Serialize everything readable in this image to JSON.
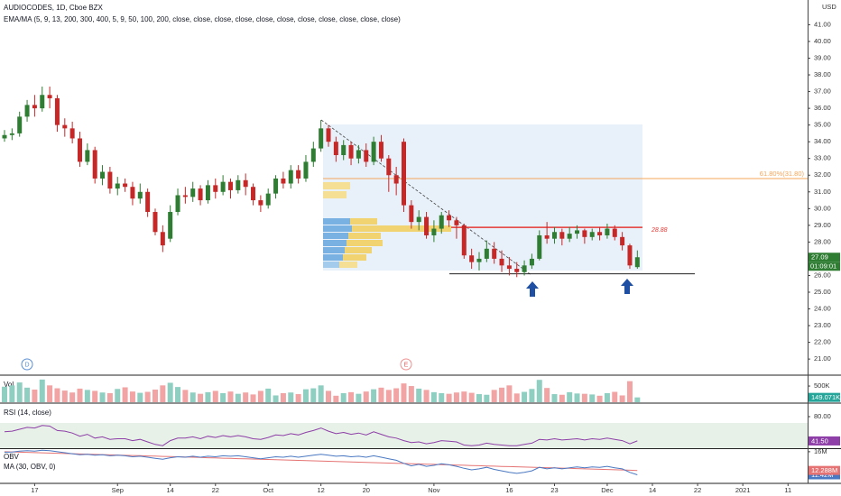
{
  "chart_data": [
    {
      "type": "candlestick",
      "title": "AUDIOCODES, 1D, Cboe BZX",
      "subtitle": "EMA/MA (5, 9, 13, 200, 300, 400, 5, 9, 50, 100, 200, close, close, close, close, close, close, close, close, close, close, close)",
      "currency": "USD",
      "countdown": "01:09:01",
      "colors": {
        "up": "#2e7d32",
        "down": "#c62828"
      },
      "open": [
        34.2,
        34.4,
        34.5,
        35.5,
        36.2,
        36.0,
        36.8,
        36.6,
        35.0,
        34.8,
        34.2,
        32.8,
        33.5,
        31.8,
        32.2,
        31.2,
        31.5,
        31.3,
        30.6,
        31.0,
        29.8,
        28.6,
        28.2,
        29.8,
        30.8,
        30.7,
        31.2,
        30.5,
        31.4,
        31.0,
        31.6,
        31.1,
        31.7,
        31.3,
        30.5,
        30.2,
        30.9,
        31.8,
        31.5,
        32.3,
        31.8,
        32.8,
        33.6,
        34.8,
        34.0,
        33.2,
        33.8,
        33.0,
        33.5,
        32.8,
        34.0,
        33.0,
        32.0,
        34.0,
        30.2,
        29.2,
        29.5,
        28.4,
        28.8,
        29.6,
        29.3,
        29.0,
        27.2,
        26.8,
        27.0,
        27.6,
        27.0,
        26.6,
        26.4,
        26.2,
        26.6,
        27.0,
        28.4,
        28.2,
        28.6,
        28.2,
        28.5,
        28.7,
        28.3,
        28.6,
        28.4,
        28.8,
        28.3,
        27.8,
        26.5
      ],
      "high": [
        34.7,
        34.8,
        35.8,
        36.5,
        36.8,
        37.3,
        37.3,
        36.8,
        35.4,
        35.2,
        34.6,
        33.9,
        33.7,
        32.6,
        32.5,
        31.9,
        31.8,
        31.6,
        31.5,
        31.2,
        30.0,
        29.0,
        30.2,
        31.2,
        31.3,
        31.6,
        31.4,
        31.7,
        31.8,
        32.0,
        31.8,
        32.0,
        32.1,
        31.5,
        30.8,
        31.2,
        32.0,
        32.2,
        32.6,
        32.6,
        33.2,
        34.0,
        35.3,
        35.0,
        34.3,
        34.1,
        34.0,
        33.8,
        33.9,
        34.3,
        34.4,
        33.2,
        32.5,
        34.2,
        30.5,
        29.9,
        29.8,
        29.3,
        29.8,
        29.9,
        29.5,
        29.1,
        27.6,
        27.4,
        28.1,
        28.0,
        27.5,
        27.1,
        26.8,
        26.9,
        27.3,
        28.7,
        29.2,
        28.9,
        28.8,
        28.9,
        29.0,
        28.8,
        28.8,
        28.9,
        29.1,
        29.0,
        28.6,
        27.9,
        27.5
      ],
      "low": [
        34.0,
        34.1,
        34.3,
        35.2,
        35.5,
        35.8,
        36.0,
        34.6,
        34.3,
        33.9,
        32.5,
        32.6,
        31.5,
        31.4,
        30.9,
        30.8,
        31.0,
        30.2,
        30.3,
        29.5,
        28.4,
        27.4,
        28.0,
        29.6,
        30.3,
        30.4,
        30.2,
        30.3,
        30.6,
        30.8,
        30.6,
        30.9,
        30.8,
        30.2,
        29.8,
        30.0,
        30.6,
        31.2,
        31.2,
        31.5,
        31.6,
        32.5,
        33.4,
        33.7,
        32.8,
        32.9,
        32.6,
        32.7,
        32.5,
        32.6,
        32.8,
        31.0,
        30.8,
        29.8,
        28.8,
        28.7,
        28.2,
        28.0,
        28.5,
        28.9,
        28.2,
        27.0,
        26.4,
        26.3,
        26.8,
        26.7,
        26.2,
        26.0,
        25.9,
        26.0,
        26.4,
        26.9,
        27.9,
        27.9,
        27.8,
        28.0,
        28.2,
        27.9,
        28.1,
        28.1,
        28.2,
        28.1,
        27.5,
        26.4,
        26.4
      ],
      "close": [
        34.4,
        34.5,
        35.5,
        36.2,
        36.0,
        36.8,
        36.6,
        35.0,
        34.8,
        34.2,
        32.8,
        33.5,
        31.8,
        32.2,
        31.2,
        31.5,
        31.3,
        30.6,
        31.0,
        29.8,
        28.6,
        27.8,
        29.8,
        30.8,
        30.7,
        31.2,
        30.5,
        31.4,
        31.0,
        31.6,
        31.1,
        31.7,
        31.3,
        30.5,
        30.2,
        30.9,
        31.8,
        31.5,
        32.3,
        31.8,
        32.8,
        33.6,
        34.8,
        34.0,
        33.2,
        33.8,
        33.0,
        33.5,
        32.8,
        34.0,
        33.0,
        32.0,
        31.5,
        30.2,
        29.2,
        29.5,
        28.4,
        28.8,
        29.6,
        29.3,
        29.0,
        27.2,
        26.8,
        27.0,
        27.6,
        27.0,
        26.6,
        26.4,
        26.2,
        26.6,
        27.0,
        28.4,
        28.2,
        28.6,
        28.2,
        28.5,
        28.7,
        28.3,
        28.6,
        28.4,
        28.8,
        28.3,
        27.8,
        26.6,
        27.09
      ],
      "ylim": [
        20.09,
        42.48
      ],
      "yticks": [
        {
          "value": 21,
          "label": "21.00"
        },
        {
          "value": 22,
          "label": "22.00"
        },
        {
          "value": 23,
          "label": "23.00"
        },
        {
          "value": 24,
          "label": "24.00"
        },
        {
          "value": 25,
          "label": "25.00"
        },
        {
          "value": 26,
          "label": "26.00"
        },
        {
          "value": 28,
          "label": "28.00"
        },
        {
          "value": 29,
          "label": "29.00"
        },
        {
          "value": 30,
          "label": "30.00"
        },
        {
          "value": 31,
          "label": "31.00"
        },
        {
          "value": 32,
          "label": "32.00"
        },
        {
          "value": 33,
          "label": "33.00"
        },
        {
          "value": 34,
          "label": "34.00"
        },
        {
          "value": 35,
          "label": "35.00"
        },
        {
          "value": 36,
          "label": "36.00"
        },
        {
          "value": 37,
          "label": "37.00"
        },
        {
          "value": 38,
          "label": "38.00"
        },
        {
          "value": 39,
          "label": "39.00"
        },
        {
          "value": 40,
          "label": "40.00"
        },
        {
          "value": 41,
          "label": "41.00"
        }
      ],
      "xlim": [
        -0.6,
        106.6
      ],
      "xticks": [
        {
          "value": 4,
          "label": "17"
        },
        {
          "value": 15,
          "label": "Sep"
        },
        {
          "value": 22,
          "label": "14"
        },
        {
          "value": 28,
          "label": "22"
        },
        {
          "value": 35,
          "label": "Oct"
        },
        {
          "value": 42,
          "label": "12"
        },
        {
          "value": 48,
          "label": "20"
        },
        {
          "value": 57,
          "label": "Nov"
        },
        {
          "value": 67,
          "label": "16"
        },
        {
          "value": 73,
          "label": "23"
        },
        {
          "value": 80,
          "label": "Dec"
        },
        {
          "value": 86,
          "label": "14"
        },
        {
          "value": 92,
          "label": "22"
        },
        {
          "value": 98,
          "label": "2021"
        },
        {
          "value": 104,
          "label": "11"
        }
      ],
      "fib": {
        "value": 31.8,
        "label": "61.80%(31.80)",
        "color": "#f5a55a"
      },
      "resistance": {
        "value": 28.88,
        "color": "#e53935"
      },
      "support": {
        "value": 26.1,
        "color": "#222222"
      },
      "events": [
        "D",
        "E"
      ]
    },
    {
      "type": "bar",
      "name": "Vol",
      "colors": {
        "up": "#8fcfc2",
        "down": "#f2a3a3"
      },
      "values": [
        480000,
        520000,
        610000,
        450000,
        390000,
        700000,
        520000,
        430000,
        360000,
        300000,
        420000,
        380000,
        350000,
        300000,
        280000,
        410000,
        460000,
        330000,
        290000,
        320000,
        390000,
        520000,
        600000,
        470000,
        380000,
        300000,
        260000,
        310000,
        350000,
        280000,
        330000,
        260000,
        300000,
        240000,
        350000,
        420000,
        210000,
        280000,
        300000,
        250000,
        400000,
        430000,
        520000,
        350000,
        200000,
        280000,
        310000,
        260000,
        330000,
        400000,
        450000,
        380000,
        430000,
        580000,
        500000,
        420000,
        380000,
        310000,
        280000,
        260000,
        300000,
        330000,
        290000,
        250000,
        230000,
        380000,
        450000,
        520000,
        270000,
        320000,
        410000,
        690000,
        440000,
        250000,
        230000,
        310000,
        270000,
        260000,
        240000,
        200000,
        280000,
        320000,
        210000,
        650000,
        149071
      ],
      "last_label": "149.071K",
      "ylim": [
        0,
        780000
      ],
      "yticks": [
        {
          "value": 500000,
          "label": "500K"
        }
      ]
    },
    {
      "type": "line",
      "title": "RSI (14, close)",
      "color": "#8e3fa8",
      "band": [
        30,
        70
      ],
      "values": [
        56,
        57,
        60,
        63,
        62,
        66,
        65,
        58,
        57,
        54,
        49,
        52,
        46,
        48,
        44,
        45,
        45,
        42,
        44,
        40,
        36,
        34,
        42,
        46,
        46,
        48,
        45,
        49,
        47,
        50,
        48,
        50,
        48,
        45,
        44,
        47,
        51,
        50,
        53,
        51,
        55,
        58,
        62,
        57,
        53,
        55,
        52,
        54,
        51,
        56,
        52,
        48,
        46,
        42,
        39,
        40,
        37,
        39,
        42,
        41,
        40,
        35,
        34,
        35,
        38,
        36,
        35,
        34,
        34,
        36,
        38,
        44,
        43,
        45,
        43,
        44,
        45,
        43,
        45,
        44,
        46,
        44,
        42,
        37,
        41.5
      ],
      "last_label": "41.50",
      "ylim": [
        30,
        100
      ],
      "yticks": [
        {
          "value": 80,
          "label": "80.00"
        }
      ]
    },
    {
      "type": "line",
      "ylim": [
        9900000,
        16340000
      ],
      "yticks": [
        {
          "value": 16000000,
          "label": "16M"
        }
      ],
      "series": [
        {
          "name": "OBV",
          "color": "#4a78c2",
          "last_label": "11.42M",
          "values": [
            15900000,
            15950000,
            16100000,
            16200000,
            16100000,
            16300000,
            16200000,
            16000000,
            15800000,
            15600000,
            15400000,
            15500000,
            15300000,
            15400000,
            15200000,
            15300000,
            15200000,
            15000000,
            15100000,
            14900000,
            14700000,
            14500000,
            14800000,
            15000000,
            14900000,
            15100000,
            14900000,
            15100000,
            15000000,
            15200000,
            15100000,
            15200000,
            15000000,
            14800000,
            14600000,
            14800000,
            15000000,
            14900000,
            15100000,
            14900000,
            15100000,
            15300000,
            15500000,
            15300000,
            15100000,
            15200000,
            15000000,
            15100000,
            14900000,
            15200000,
            14900000,
            14600000,
            14300000,
            13700000,
            13200000,
            13500000,
            13100000,
            13300000,
            13600000,
            13400000,
            13100000,
            12700000,
            12400000,
            12600000,
            12900000,
            12500000,
            12200000,
            11900000,
            11700000,
            11900000,
            12200000,
            12900000,
            12600000,
            12800000,
            12600000,
            12800000,
            13000000,
            12800000,
            13000000,
            12900000,
            13100000,
            12800000,
            12600000,
            11900000,
            11420000
          ]
        },
        {
          "name": "MA (30, OBV, 0)",
          "color": "#e57373",
          "last_label": "12.288M",
          "values": [
            16000000,
            15960000,
            15910000,
            15870000,
            15820000,
            15780000,
            15740000,
            15690000,
            15650000,
            15600000,
            15560000,
            15510000,
            15470000,
            15430000,
            15380000,
            15340000,
            15290000,
            15250000,
            15210000,
            15160000,
            15120000,
            15070000,
            15030000,
            14990000,
            14940000,
            14900000,
            14850000,
            14810000,
            14770000,
            14720000,
            14680000,
            14630000,
            14590000,
            14550000,
            14500000,
            14460000,
            14410000,
            14370000,
            14330000,
            14280000,
            14240000,
            14190000,
            14150000,
            14110000,
            14060000,
            14020000,
            13970000,
            13930000,
            13890000,
            13840000,
            13800000,
            13750000,
            13710000,
            13670000,
            13620000,
            13580000,
            13530000,
            13490000,
            13450000,
            13400000,
            13360000,
            13310000,
            13270000,
            13230000,
            13180000,
            13140000,
            13090000,
            13050000,
            13010000,
            12960000,
            12920000,
            12870000,
            12830000,
            12790000,
            12740000,
            12700000,
            12650000,
            12610000,
            12570000,
            12520000,
            12480000,
            12430000,
            12390000,
            12340000,
            12288000
          ]
        }
      ]
    }
  ]
}
